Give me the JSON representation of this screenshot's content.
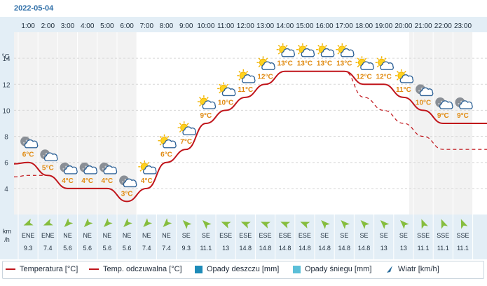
{
  "date": "2022-05-04",
  "y_unit_label": "°C",
  "wind_unit_line1": "km",
  "wind_unit_line2": "/h",
  "legend": {
    "temperature": "Temperatura [°C]",
    "feels_like": "Temp. odczuwalna [°C]",
    "rain": "Opady deszczu [mm]",
    "snow": "Opady śniegu [mm]",
    "wind": "Wiatr [km/h]"
  },
  "colors": {
    "temperature": "#c0141a",
    "feels_like": "#c0141a",
    "rain": "#1d8bb8",
    "snow": "#5bbfd8",
    "wind": "#2e6f9e",
    "wind_arrow": "#86bd3e",
    "label": "#e08a10",
    "axis_header_bg": "#e3eef6",
    "night_bg": "#f2f2f2"
  },
  "chart_data": {
    "type": "line",
    "x": [
      "1:00",
      "2:00",
      "3:00",
      "4:00",
      "5:00",
      "6:00",
      "7:00",
      "8:00",
      "9:00",
      "10:00",
      "11:00",
      "12:00",
      "13:00",
      "14:00",
      "15:00",
      "16:00",
      "17:00",
      "18:00",
      "19:00",
      "20:00",
      "21:00",
      "22:00",
      "23:00"
    ],
    "ylim": [
      2,
      16
    ],
    "yticks": [
      4,
      6,
      8,
      10,
      12,
      14
    ],
    "series": [
      {
        "name": "Temperatura [°C]",
        "values": [
          6,
          5,
          4,
          4,
          4,
          3,
          4,
          6,
          7,
          9,
          10,
          11,
          12,
          13,
          13,
          13,
          13,
          12,
          12,
          11,
          10,
          9,
          9
        ]
      },
      {
        "name": "Temp. odczuwalna [°C]",
        "values": [
          5,
          5,
          4,
          4,
          4,
          3,
          4,
          6,
          7,
          9,
          10,
          11,
          12,
          13,
          13,
          13,
          13,
          11,
          10,
          9,
          8,
          7,
          7
        ]
      }
    ],
    "point_labels": [
      "6°C",
      "5°C",
      "4°C",
      "4°C",
      "4°C",
      "3°C",
      "4°C",
      "6°C",
      "7°C",
      "9°C",
      "10°C",
      "11°C",
      "12°C",
      "13°C",
      "13°C",
      "13°C",
      "13°C",
      "12°C",
      "12°C",
      "11°C",
      "10°C",
      "9°C",
      "9°C"
    ],
    "icons": [
      "moon-cloud",
      "moon-cloud",
      "moon-cloud",
      "moon-cloud",
      "moon-cloud",
      "moon-cloud",
      "sun-cloud",
      "sun-cloud",
      "sun-cloud",
      "sun-cloud",
      "sun-cloud",
      "sun-cloud",
      "sun-cloud",
      "sun-cloud",
      "sun-cloud",
      "sun-cloud",
      "sun-cloud",
      "sun-cloud",
      "sun-cloud",
      "sun-cloud",
      "moon-cloud",
      "moon-cloud",
      "moon-cloud"
    ],
    "wind_dir": [
      "ENE",
      "ENE",
      "NE",
      "NE",
      "NE",
      "NE",
      "NE",
      "NE",
      "SE",
      "SE",
      "ESE",
      "ESE",
      "ESE",
      "ESE",
      "ESE",
      "SE",
      "SE",
      "SE",
      "SE",
      "SE",
      "SSE",
      "SSE",
      "SSE"
    ],
    "wind_speed": [
      "9.3",
      "7.4",
      "5.6",
      "5.6",
      "5.6",
      "5.6",
      "7.4",
      "7.4",
      "9.3",
      "11.1",
      "13",
      "14.8",
      "14.8",
      "14.8",
      "14.8",
      "14.8",
      "14.8",
      "14.8",
      "13",
      "13",
      "11.1",
      "11.1",
      "11.1"
    ],
    "wind_deg": [
      67.5,
      67.5,
      45,
      45,
      45,
      45,
      45,
      45,
      135,
      135,
      112.5,
      112.5,
      112.5,
      112.5,
      112.5,
      135,
      135,
      135,
      135,
      135,
      157.5,
      157.5,
      157.5
    ],
    "night_hours_start": [
      "1:00",
      "21:00"
    ],
    "night_hours_end": [
      "6:00",
      "23:00"
    ]
  }
}
